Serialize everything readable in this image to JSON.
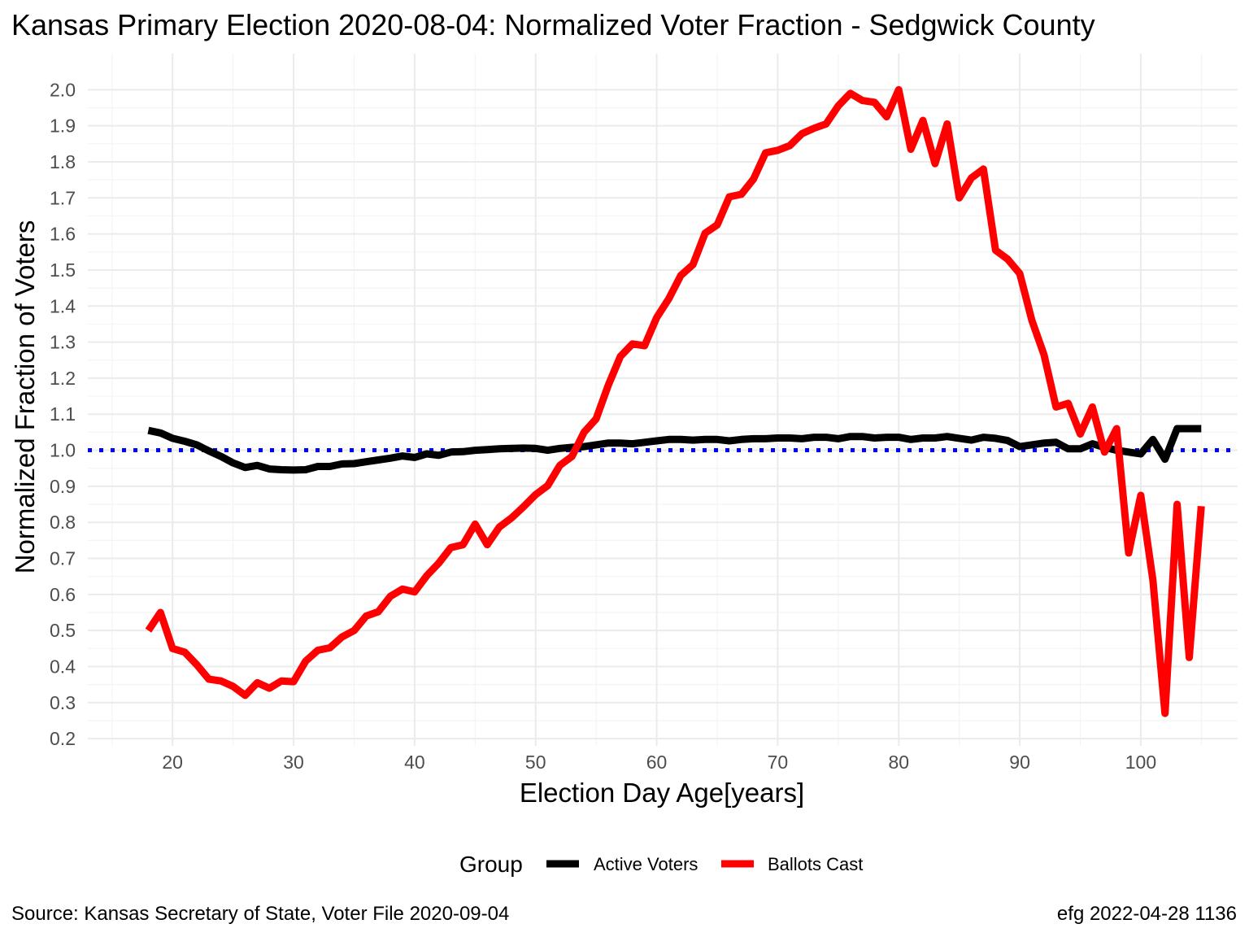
{
  "chart_data": {
    "type": "line",
    "title": "Kansas Primary Election 2020-08-04:  Normalized Voter Fraction - Sedgwick County",
    "xlabel": "Election Day Age[years]",
    "ylabel": "Normalized Fraction of Voters",
    "xlim": [
      13,
      108
    ],
    "ylim": [
      0.18,
      2.1
    ],
    "x_ticks": [
      20,
      30,
      40,
      50,
      60,
      70,
      80,
      90,
      100
    ],
    "y_ticks": [
      0.2,
      0.3,
      0.4,
      0.5,
      0.6,
      0.7,
      0.8,
      0.9,
      1.0,
      1.1,
      1.2,
      1.3,
      1.4,
      1.5,
      1.6,
      1.7,
      1.8,
      1.9,
      2.0
    ],
    "grid": true,
    "reference_line": {
      "y": 1.0,
      "style": "dotted",
      "color": "#0000ff"
    },
    "legend": {
      "title": "Group",
      "position": "bottom"
    },
    "series": [
      {
        "name": "Active Voters",
        "color": "#000000",
        "x": [
          18,
          19,
          20,
          21,
          22,
          23,
          24,
          25,
          26,
          27,
          28,
          29,
          30,
          31,
          32,
          33,
          34,
          35,
          36,
          37,
          38,
          39,
          40,
          41,
          42,
          43,
          44,
          45,
          46,
          47,
          48,
          49,
          50,
          51,
          52,
          53,
          54,
          55,
          56,
          57,
          58,
          59,
          60,
          61,
          62,
          63,
          64,
          65,
          66,
          67,
          68,
          69,
          70,
          71,
          72,
          73,
          74,
          75,
          76,
          77,
          78,
          79,
          80,
          81,
          82,
          83,
          84,
          85,
          86,
          87,
          88,
          89,
          90,
          91,
          92,
          93,
          94,
          95,
          96,
          97,
          98,
          99,
          100,
          101,
          102,
          103,
          104,
          105
        ],
        "y": [
          1.055,
          1.048,
          1.033,
          1.025,
          1.015,
          0.998,
          0.983,
          0.965,
          0.952,
          0.958,
          0.948,
          0.946,
          0.945,
          0.946,
          0.955,
          0.955,
          0.962,
          0.963,
          0.968,
          0.973,
          0.978,
          0.984,
          0.98,
          0.99,
          0.986,
          0.995,
          0.996,
          1.0,
          1.002,
          1.004,
          1.005,
          1.006,
          1.005,
          1.0,
          1.005,
          1.008,
          1.01,
          1.015,
          1.02,
          1.02,
          1.018,
          1.022,
          1.026,
          1.03,
          1.03,
          1.028,
          1.03,
          1.03,
          1.026,
          1.03,
          1.032,
          1.032,
          1.034,
          1.034,
          1.032,
          1.036,
          1.036,
          1.032,
          1.038,
          1.038,
          1.034,
          1.036,
          1.036,
          1.03,
          1.034,
          1.034,
          1.038,
          1.033,
          1.028,
          1.036,
          1.033,
          1.027,
          1.01,
          1.015,
          1.02,
          1.022,
          1.004,
          1.004,
          1.018,
          1.008,
          1.0,
          0.995,
          0.99,
          1.03,
          0.975,
          1.06,
          1.06,
          1.06
        ]
      },
      {
        "name": "Ballots Cast",
        "color": "#ff0000",
        "x": [
          18,
          19,
          20,
          21,
          22,
          23,
          24,
          25,
          26,
          27,
          28,
          29,
          30,
          31,
          32,
          33,
          34,
          35,
          36,
          37,
          38,
          39,
          40,
          41,
          42,
          43,
          44,
          45,
          46,
          47,
          48,
          49,
          50,
          51,
          52,
          53,
          54,
          55,
          56,
          57,
          58,
          59,
          60,
          61,
          62,
          63,
          64,
          65,
          66,
          67,
          68,
          69,
          70,
          71,
          72,
          73,
          74,
          75,
          76,
          77,
          78,
          79,
          80,
          81,
          82,
          83,
          84,
          85,
          86,
          87,
          88,
          89,
          90,
          91,
          92,
          93,
          94,
          95,
          96,
          97,
          98,
          99,
          100,
          101,
          102,
          103,
          104,
          105
        ],
        "y": [
          0.5,
          0.55,
          0.45,
          0.44,
          0.405,
          0.365,
          0.36,
          0.345,
          0.32,
          0.355,
          0.34,
          0.36,
          0.358,
          0.415,
          0.445,
          0.452,
          0.482,
          0.5,
          0.54,
          0.552,
          0.595,
          0.615,
          0.607,
          0.652,
          0.687,
          0.73,
          0.738,
          0.795,
          0.738,
          0.787,
          0.812,
          0.843,
          0.877,
          0.902,
          0.958,
          0.983,
          1.05,
          1.087,
          1.18,
          1.26,
          1.295,
          1.29,
          1.368,
          1.42,
          1.485,
          1.515,
          1.602,
          1.625,
          1.703,
          1.71,
          1.752,
          1.825,
          1.832,
          1.845,
          1.878,
          1.893,
          1.905,
          1.955,
          1.99,
          1.97,
          1.965,
          1.925,
          2.0,
          1.835,
          1.915,
          1.795,
          1.905,
          1.7,
          1.755,
          1.78,
          1.555,
          1.53,
          1.49,
          1.36,
          1.265,
          1.12,
          1.13,
          1.045,
          1.12,
          0.995,
          1.06,
          0.715,
          0.875,
          0.64,
          0.27,
          0.85,
          0.425,
          0.845
        ]
      }
    ]
  },
  "caption": {
    "left": "Source:  Kansas Secretary of State, Voter File  2020-09-04",
    "right": "efg 2022-04-28 1136"
  }
}
